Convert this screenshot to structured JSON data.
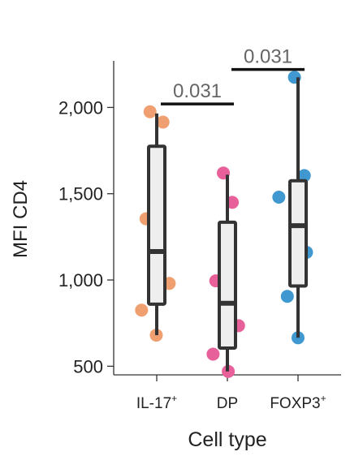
{
  "chart_data": {
    "type": "box",
    "xlabel": "Cell type",
    "ylabel": "MFI CD4",
    "ylim": [
      450,
      2270
    ],
    "yticks": [
      {
        "value": 500,
        "label": "500"
      },
      {
        "value": 1000,
        "label": "1,000"
      },
      {
        "value": 1500,
        "label": "1,500"
      },
      {
        "value": 2000,
        "label": "2,000"
      }
    ],
    "categories": [
      {
        "name": "IL-17",
        "sup": "+",
        "color": "#f0a070"
      },
      {
        "name": "DP",
        "sup": "",
        "color": "#e8609a"
      },
      {
        "name": "FOXP3",
        "sup": "+",
        "color": "#3f98d0"
      }
    ],
    "boxes": [
      {
        "min": 680,
        "q1": 860,
        "median": 1165,
        "q3": 1775,
        "max": 1965
      },
      {
        "min": 470,
        "q1": 605,
        "median": 865,
        "q3": 1335,
        "max": 1610
      },
      {
        "min": 665,
        "q1": 965,
        "median": 1315,
        "q3": 1575,
        "max": 2175
      }
    ],
    "points": [
      [
        {
          "y": 1975,
          "jitter": -0.15
        },
        {
          "y": 1915,
          "jitter": 0.14
        },
        {
          "y": 1355,
          "jitter": -0.24
        },
        {
          "y": 980,
          "jitter": 0.28
        },
        {
          "y": 825,
          "jitter": -0.34
        },
        {
          "y": 680,
          "jitter": -0.01
        }
      ],
      [
        {
          "y": 1620,
          "jitter": -0.09
        },
        {
          "y": 1450,
          "jitter": 0.11
        },
        {
          "y": 995,
          "jitter": -0.26
        },
        {
          "y": 735,
          "jitter": 0.25
        },
        {
          "y": 570,
          "jitter": -0.32
        },
        {
          "y": 470,
          "jitter": 0.02
        }
      ],
      [
        {
          "y": 2175,
          "jitter": -0.08
        },
        {
          "y": 1605,
          "jitter": 0.14
        },
        {
          "y": 1480,
          "jitter": -0.43
        },
        {
          "y": 1160,
          "jitter": 0.19
        },
        {
          "y": 905,
          "jitter": -0.24
        },
        {
          "y": 665,
          "jitter": 0.0
        }
      ]
    ],
    "comparisons": [
      {
        "from": 0,
        "to": 1,
        "label": "0.031",
        "y": 2020
      },
      {
        "from": 1,
        "to": 2,
        "label": "0.031",
        "y": 2220
      }
    ]
  }
}
